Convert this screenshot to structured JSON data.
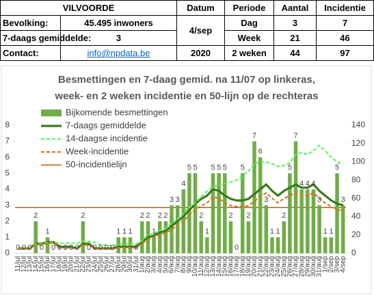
{
  "table": {
    "rows": [
      [
        "VILVOORDE",
        "Datum",
        "Periode",
        "Aantal",
        "Incidentie"
      ],
      [
        "Bevolking:",
        "45.495 inwoners",
        "4/sep",
        "Dag",
        "3",
        "7"
      ],
      [
        "7-daags gemiddelde:",
        "3",
        "Week",
        "21",
        "46"
      ],
      [
        "Contact:",
        "info@npdata.be",
        "2020",
        "2 weken",
        "44",
        "97"
      ]
    ]
  },
  "chart_data": {
    "type": "bar",
    "title": [
      "Besmettingen en 7-daag gemid. na 11/07 op linkeras,",
      "week- en 2 weken incidentie en 50-lijn op de  rechteras"
    ],
    "categories": [
      "11/jul",
      "12/jul",
      "13/jul",
      "14/jul",
      "15/jul",
      "16/jul",
      "17/jul",
      "18/jul",
      "19/jul",
      "20/jul",
      "21/jul",
      "22/jul",
      "23/jul",
      "24/jul",
      "25/jul",
      "26/jul",
      "27/jul",
      "28/jul",
      "29/jul",
      "30/jul",
      "31/jul",
      "1/aug",
      "2/aug",
      "3/aug",
      "4/aug",
      "5/aug",
      "6/aug",
      "7/aug",
      "8/aug",
      "9/aug",
      "10/aug",
      "11/aug",
      "12/aug",
      "13/aug",
      "14/aug",
      "15/aug",
      "16/aug",
      "17/aug",
      "18/aug",
      "19/aug",
      "20/aug",
      "21/aug",
      "22/aug",
      "23/aug",
      "24/aug",
      "25/aug",
      "26/aug",
      "27/aug",
      "28/aug",
      "29/aug",
      "30/aug",
      "31/aug",
      "1/sep",
      "2/sep",
      "3/sep",
      "4/sep"
    ],
    "series": [
      {
        "name": "Bijkomende besmettingen",
        "type": "bar",
        "color": "#70ad47",
        "values": [
          0,
          0,
          0,
          2,
          0,
          1,
          0,
          0,
          0,
          0,
          0,
          2,
          0,
          0,
          0,
          0,
          0,
          1,
          1,
          1,
          0,
          2,
          2,
          1,
          2,
          2,
          3,
          3,
          4,
          5,
          5,
          2,
          1,
          5,
          5,
          5,
          2,
          0,
          5,
          2,
          7,
          6,
          3,
          1,
          1,
          2,
          5,
          7,
          4,
          4,
          4,
          3,
          1,
          1,
          5,
          3
        ]
      },
      {
        "name": "7-daags gemiddelde",
        "type": "line",
        "style": "solid",
        "color": "#3b7a1f",
        "values": [
          0.3,
          0.3,
          0.3,
          0.6,
          0.6,
          0.7,
          0.7,
          0.4,
          0.4,
          0.4,
          0.3,
          0.6,
          0.6,
          0.3,
          0.3,
          0.3,
          0.3,
          0.4,
          0.4,
          0.4,
          0.4,
          0.7,
          1.0,
          1.1,
          1.3,
          1.4,
          1.7,
          2.0,
          2.3,
          2.7,
          3.1,
          3.4,
          3.6,
          4.0,
          3.9,
          3.6,
          3.4,
          3.3,
          3.3,
          3.4,
          3.7,
          4.0,
          4.3,
          3.9,
          3.6,
          3.9,
          4.1,
          4.3,
          4.1,
          4.1,
          4.3,
          3.9,
          3.6,
          3.3,
          3.1,
          3.0
        ]
      },
      {
        "name": "14-daagse incidentie",
        "type": "line",
        "style": "dashed",
        "axis": "y2",
        "color": "#5ef25e",
        "values": [
          6,
          6,
          6,
          10,
          10,
          12,
          12,
          11,
          11,
          11,
          11,
          13,
          13,
          12,
          9,
          9,
          8,
          10,
          10,
          10,
          10,
          14,
          20,
          22,
          25,
          27,
          33,
          37,
          44,
          50,
          55,
          62,
          68,
          72,
          75,
          76,
          78,
          80,
          85,
          90,
          98,
          100,
          100,
          98,
          95,
          96,
          99,
          108,
          110,
          108,
          112,
          118,
          112,
          105,
          100,
          97
        ]
      },
      {
        "name": "Week-incidentie",
        "type": "line",
        "style": "dashed",
        "axis": "y2",
        "color": "#e0731f",
        "values": [
          5,
          5,
          5,
          9,
          9,
          11,
          11,
          6,
          6,
          6,
          5,
          9,
          9,
          5,
          5,
          5,
          5,
          6,
          6,
          6,
          6,
          11,
          15,
          17,
          20,
          22,
          26,
          31,
          35,
          42,
          48,
          52,
          55,
          62,
          60,
          55,
          52,
          51,
          51,
          52,
          57,
          62,
          66,
          60,
          55,
          60,
          63,
          66,
          63,
          63,
          66,
          60,
          55,
          51,
          48,
          46
        ]
      }
    ],
    "hline": {
      "name": "50-incidentielijn",
      "value": 50,
      "axis": "y2",
      "color": "#c55a11"
    },
    "ylim": [
      0,
      8
    ],
    "yticks": [
      0,
      1,
      2,
      3,
      4,
      5,
      6,
      7,
      8
    ],
    "y2lim": [
      0,
      140
    ],
    "y2ticks": [
      0,
      20,
      40,
      60,
      80,
      100,
      120,
      140
    ],
    "legend": "top-left",
    "value_labels_shown": true
  }
}
